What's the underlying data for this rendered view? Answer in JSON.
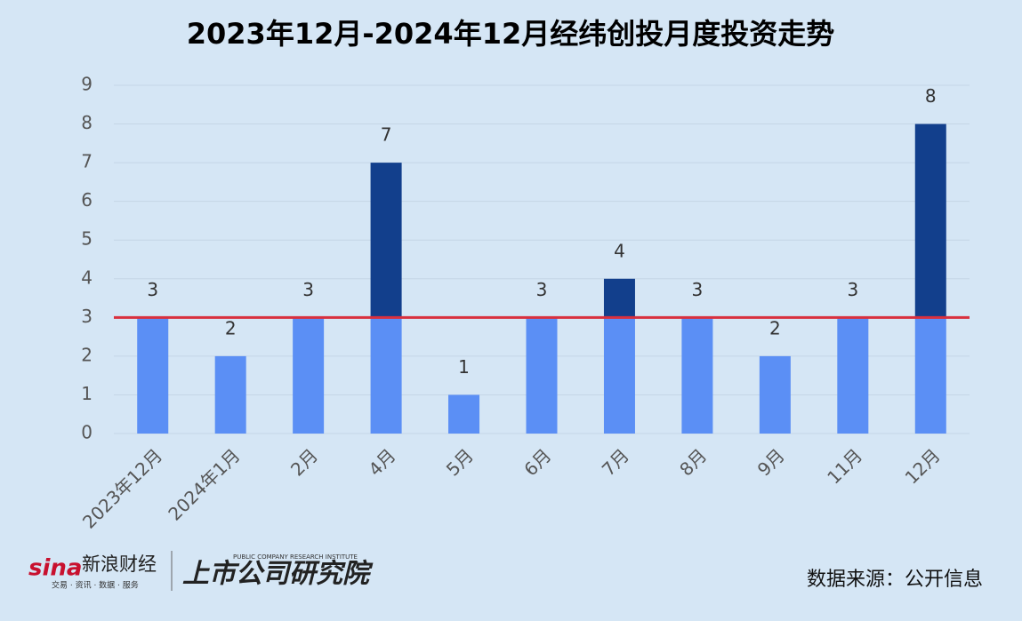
{
  "chart_data": {
    "type": "bar",
    "title": "2023年12月-2024年12月经纬创投月度投资走势",
    "categories": [
      "2023年12月",
      "2024年1月",
      "2月",
      "4月",
      "5月",
      "6月",
      "7月",
      "8月",
      "9月",
      "11月",
      "12月"
    ],
    "values": [
      3,
      2,
      3,
      7,
      1,
      3,
      4,
      3,
      2,
      3,
      8
    ],
    "color": "#5b8ff5",
    "above_color": "#123f8c",
    "reference_line": 3,
    "reference_color": "#d9303e",
    "ylim": [
      0,
      9
    ],
    "yticks": [
      0,
      1,
      2,
      3,
      4,
      5,
      6,
      7,
      8,
      9
    ],
    "grid": true
  },
  "branding": {
    "logo": "sina",
    "logo_name": "新浪财经",
    "logo_tagline": "交易 · 资讯 · 数据 · 服务",
    "institute_en": "PUBLIC COMPANY RESEARCH INSTITUTE",
    "institute": "上市公司研究院"
  },
  "source": "数据来源：公开信息"
}
